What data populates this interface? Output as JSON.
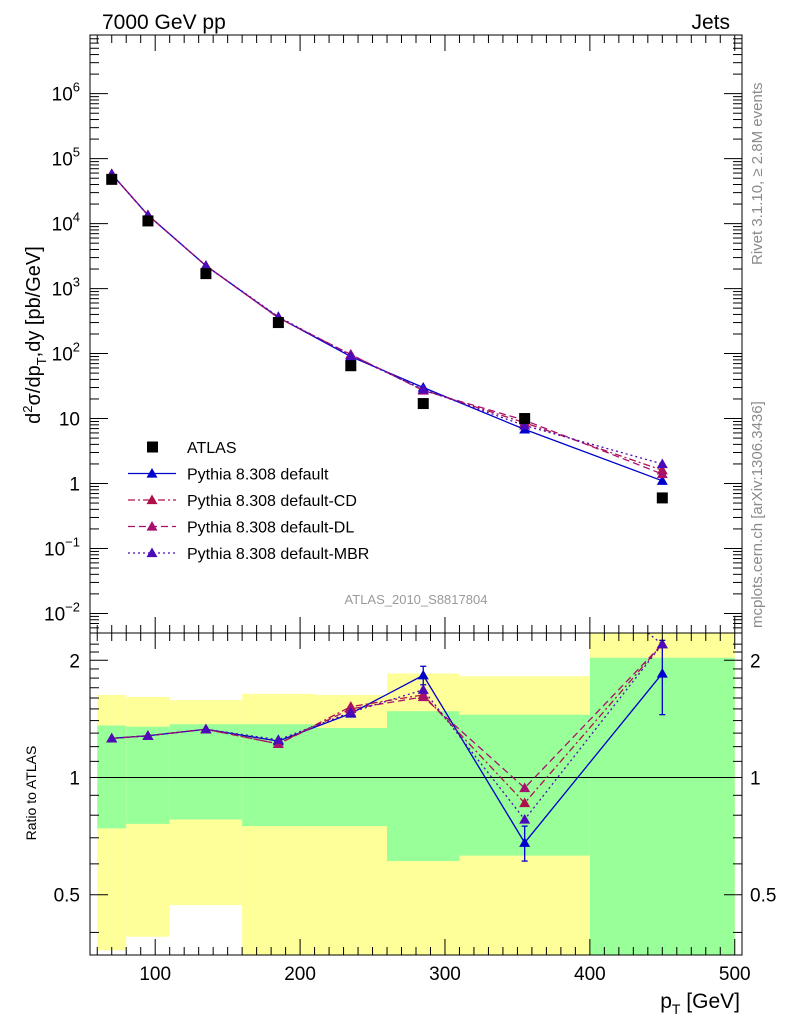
{
  "header": {
    "left": "7000 GeV pp",
    "right": "Jets"
  },
  "side_labels": {
    "top": "Rivet 3.1.10, ≥ 2.8M events",
    "bottom": "mcplots.cern.ch [arXiv:1306.3436]"
  },
  "watermark": "ATLAS_2010_S8817804",
  "colors": {
    "band_yellow": "#ffff99",
    "band_green": "#99ff99",
    "data": "#000000",
    "default": "#0000cc",
    "cd": "#b0104a",
    "dl": "#a8106e",
    "mbr": "#4b0bb8"
  },
  "chart_data": [
    {
      "id": "main",
      "type": "scatter",
      "ylabel": "d²σ/dp_T,dy [pb/GeV]",
      "yscale": "log",
      "ylim": [
        0.005,
        8000000
      ],
      "xlim": [
        55,
        505
      ],
      "y_ticks": [
        {
          "value": 0.01,
          "base": "10",
          "exp": "−2"
        },
        {
          "value": 0.1,
          "base": "10",
          "exp": "−1"
        },
        {
          "value": 1,
          "base": "1",
          "exp": ""
        },
        {
          "value": 10,
          "base": "10",
          "exp": ""
        },
        {
          "value": 100,
          "base": "10",
          "exp": "2"
        },
        {
          "value": 1000,
          "base": "10",
          "exp": "3"
        },
        {
          "value": 10000,
          "base": "10",
          "exp": "4"
        },
        {
          "value": 100000,
          "base": "10",
          "exp": "5"
        },
        {
          "value": 1000000,
          "base": "10",
          "exp": "6"
        }
      ],
      "legend_position": "bottom-left",
      "data": {
        "name": "ATLAS",
        "x": [
          70,
          95,
          135,
          185,
          235,
          285,
          355,
          450
        ],
        "y": [
          48000,
          11000,
          1700,
          300,
          65,
          17,
          10,
          0.6
        ]
      },
      "series": [
        {
          "name": "Pythia 8.308 default",
          "style": "solid",
          "x": [
            70,
            95,
            135,
            185,
            235,
            285,
            355,
            450
          ],
          "y": [
            58000,
            13500,
            2250,
            360,
            90,
            30,
            6.8,
            1.1
          ]
        },
        {
          "name": "Pythia 8.308 default-CD",
          "style": "dashdot",
          "x": [
            70,
            95,
            135,
            185,
            235,
            285,
            355,
            450
          ],
          "y": [
            58000,
            13500,
            2250,
            355,
            96,
            27.5,
            8.6,
            1.6
          ]
        },
        {
          "name": "Pythia 8.308 default-DL",
          "style": "dashed",
          "x": [
            70,
            95,
            135,
            185,
            235,
            285,
            355,
            450
          ],
          "y": [
            58000,
            13500,
            2250,
            355,
            97,
            27,
            9.4,
            1.4
          ]
        },
        {
          "name": "Pythia 8.308 default-MBR",
          "style": "dotted",
          "x": [
            70,
            95,
            135,
            185,
            235,
            285,
            355,
            450
          ],
          "y": [
            58000,
            13500,
            2250,
            370,
            92,
            28,
            7.8,
            2.0
          ]
        }
      ]
    },
    {
      "id": "ratio",
      "type": "line",
      "xlabel": "p_T [GeV]",
      "ylabel": "Ratio to ATLAS",
      "yscale": "log",
      "ylim": [
        0.35,
        2.35
      ],
      "xlim": [
        55,
        505
      ],
      "x_ticks": [
        100,
        200,
        300,
        400,
        500
      ],
      "y_ticks": [
        0.5,
        1,
        2
      ],
      "bands": [
        {
          "x0": 60,
          "x1": 80,
          "yellow": [
            0.36,
            1.63
          ],
          "green": [
            0.74,
            1.36
          ]
        },
        {
          "x0": 80,
          "x1": 110,
          "yellow": [
            0.39,
            1.61
          ],
          "green": [
            0.76,
            1.35
          ]
        },
        {
          "x0": 110,
          "x1": 160,
          "yellow": [
            0.47,
            1.58
          ],
          "green": [
            0.78,
            1.37
          ]
        },
        {
          "x0": 160,
          "x1": 210,
          "yellow": [
            0.35,
            1.64
          ],
          "green": [
            0.75,
            1.37
          ]
        },
        {
          "x0": 210,
          "x1": 260,
          "yellow": [
            0.35,
            1.63
          ],
          "green": [
            0.75,
            1.34
          ]
        },
        {
          "x0": 260,
          "x1": 310,
          "yellow": [
            0.35,
            1.85
          ],
          "green": [
            0.61,
            1.48
          ]
        },
        {
          "x0": 310,
          "x1": 400,
          "yellow": [
            0.35,
            1.82
          ],
          "green": [
            0.63,
            1.45
          ]
        },
        {
          "x0": 400,
          "x1": 500,
          "yellow": [
            0.35,
            2.35
          ],
          "green": [
            0.35,
            2.03
          ]
        }
      ],
      "series": [
        {
          "name": "Pythia 8.308 default",
          "style": "solid",
          "x": [
            70,
            95,
            135,
            185,
            235,
            285,
            355,
            450
          ],
          "y": [
            1.26,
            1.28,
            1.33,
            1.24,
            1.46,
            1.83,
            0.68,
            1.85
          ],
          "err": [
            0,
            0,
            0,
            0,
            0,
            0.1,
            0.07,
            0.4
          ]
        },
        {
          "name": "Pythia 8.308 default-CD",
          "style": "dashdot",
          "x": [
            70,
            95,
            135,
            185,
            235,
            285,
            355,
            450
          ],
          "y": [
            1.26,
            1.28,
            1.33,
            1.22,
            1.52,
            1.63,
            0.86,
            2.2
          ],
          "err": [
            0,
            0,
            0,
            0,
            0,
            0,
            0,
            0
          ]
        },
        {
          "name": "Pythia 8.308 default-DL",
          "style": "dashed",
          "x": [
            70,
            95,
            135,
            185,
            235,
            285,
            355,
            450
          ],
          "y": [
            1.26,
            1.28,
            1.33,
            1.22,
            1.5,
            1.61,
            0.94,
            2.2
          ],
          "err": [
            0,
            0,
            0,
            0,
            0,
            0,
            0,
            0
          ]
        },
        {
          "name": "Pythia 8.308 default-MBR",
          "style": "dotted",
          "x": [
            70,
            95,
            135,
            185,
            235,
            285,
            355,
            450,
            440
          ],
          "y": [
            1.26,
            1.28,
            1.33,
            1.25,
            1.47,
            1.68,
            0.78,
            2.2,
            2.35
          ],
          "err": [
            0,
            0,
            0,
            0,
            0,
            0,
            0,
            0,
            0
          ],
          "hide_last": true
        }
      ]
    }
  ]
}
